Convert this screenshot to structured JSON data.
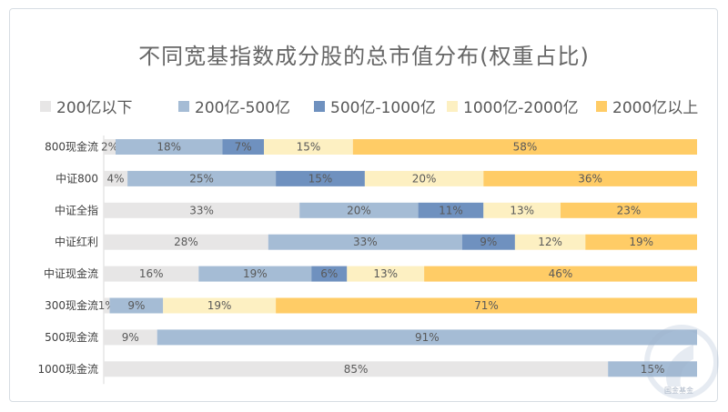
{
  "chart_data": {
    "type": "bar",
    "orientation": "horizontal",
    "stacked": true,
    "title": "不同宽基指数成分股的总市值分布(权重占比)",
    "categories": [
      "800现金流",
      "中证800",
      "中证全指",
      "中证红利",
      "中证现金流",
      "300现金流",
      "500现金流",
      "1000现金流"
    ],
    "series": [
      {
        "name": "200亿以下",
        "color": "#e7e6e6",
        "values": [
          2,
          4,
          33,
          28,
          16,
          1,
          9,
          85
        ]
      },
      {
        "name": "200亿-500亿",
        "color": "#a5bcd5",
        "values": [
          18,
          25,
          20,
          33,
          19,
          9,
          91,
          15
        ]
      },
      {
        "name": "500亿-1000亿",
        "color": "#6f91bf",
        "values": [
          7,
          15,
          11,
          9,
          6,
          0,
          0,
          0
        ]
      },
      {
        "name": "1000亿-2000亿",
        "color": "#fdf0c2",
        "values": [
          15,
          20,
          13,
          12,
          13,
          19,
          0,
          0
        ]
      },
      {
        "name": "2000亿以上",
        "color": "#ffcc66",
        "values": [
          58,
          36,
          23,
          19,
          46,
          71,
          0,
          0
        ]
      }
    ],
    "value_suffix": "%",
    "xlim": [
      0,
      100
    ],
    "grid": false,
    "legend_position": "top"
  },
  "watermark": {
    "text": "国金基金"
  }
}
